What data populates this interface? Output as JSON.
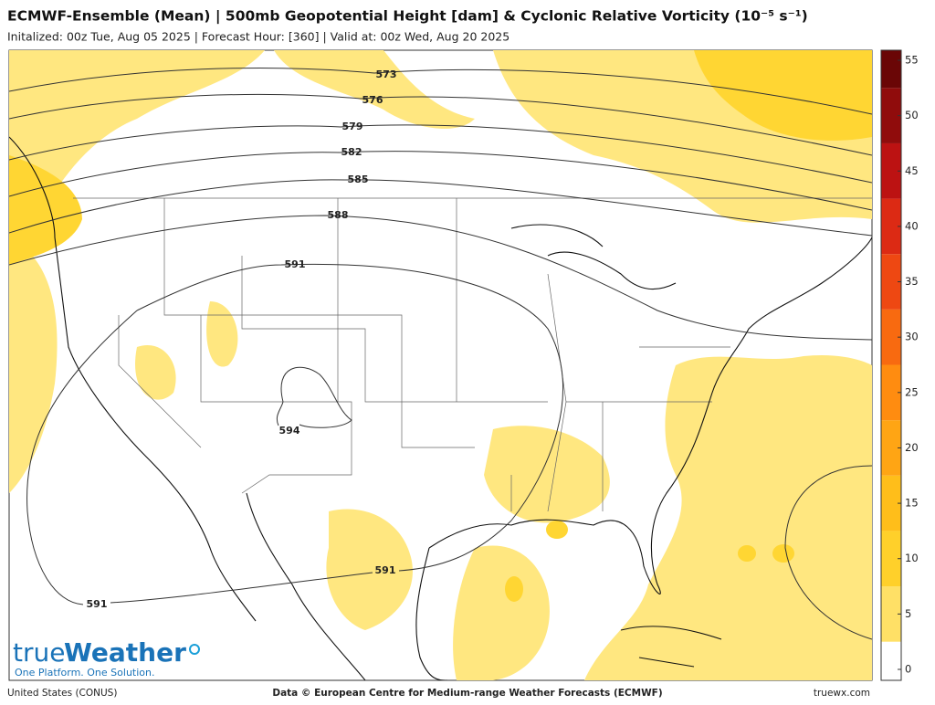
{
  "header": {
    "title": "ECMWF-Ensemble (Mean) | 500mb Geopotential Height [dam] & Cyclonic Relative Vorticity (10⁻⁵ s⁻¹)",
    "subtitle": "Initalized: 00z Tue, Aug 05 2025 | Forecast Hour: [360] | Valid at: 00z Wed, Aug 20 2025"
  },
  "contour_labels": [
    "573",
    "576",
    "579",
    "582",
    "585",
    "588",
    "591",
    "594",
    "591",
    "591"
  ],
  "colorbar": {
    "range": [
      0,
      55
    ],
    "ticks": [
      0,
      5,
      10,
      15,
      20,
      25,
      30,
      35,
      40,
      45,
      50,
      55
    ],
    "colors": [
      "#ffffff",
      "#fff2a8",
      "#ffe066",
      "#ffd02a",
      "#ffbe1a",
      "#ffa514",
      "#ff8c10",
      "#f86a10",
      "#ee4812",
      "#dc2a14",
      "#bc1212",
      "#900c0c",
      "#6a0606"
    ]
  },
  "logo": {
    "brand_light": "true",
    "brand_bold": "Weather",
    "tagline": "One Platform. One Solution."
  },
  "footer": {
    "region": "United States (CONUS)",
    "credit": "Data © European Centre for Medium-range Weather Forecasts (ECMWF)",
    "site": "truewx.com"
  }
}
